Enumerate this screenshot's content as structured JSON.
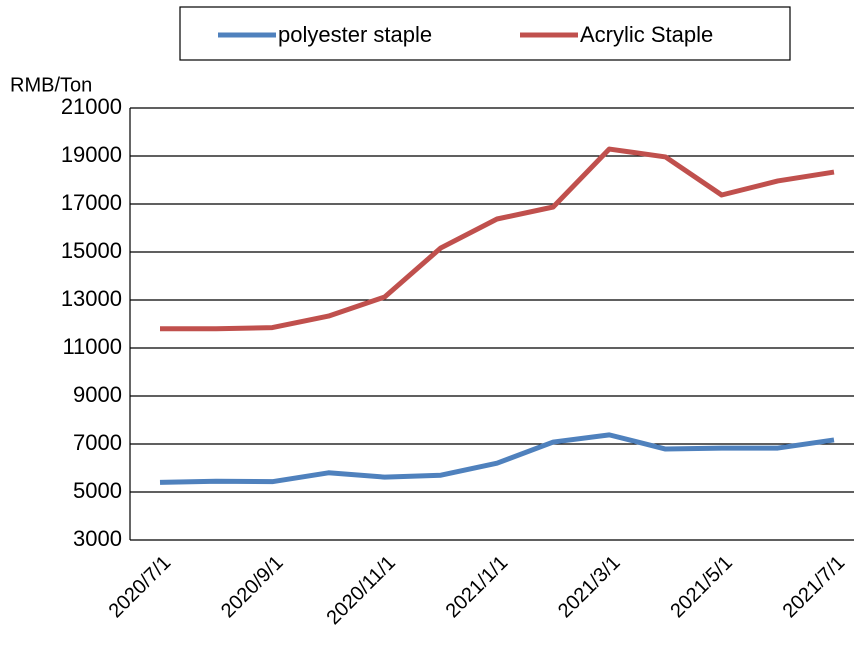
{
  "chart_data": {
    "type": "line",
    "y_label": "RMB/Ton",
    "categories": [
      "2020/7/1",
      null,
      "2020/9/1",
      null,
      "2020/11/1",
      null,
      "2021/1/1",
      null,
      "2021/3/1",
      null,
      "2021/5/1",
      null,
      "2021/7/1"
    ],
    "series": [
      {
        "name": "polyester staple",
        "color": "#4f81bd",
        "values": [
          5400,
          5450,
          5430,
          5800,
          5620,
          5700,
          6200,
          7080,
          7380,
          6790,
          6830,
          6830,
          7170
        ]
      },
      {
        "name": "Acrylic Staple",
        "color": "#c0504d",
        "values": [
          11800,
          11800,
          11850,
          12330,
          13125,
          15170,
          16375,
          16875,
          19290,
          18960,
          17375,
          17960,
          18330
        ]
      }
    ],
    "ylim": [
      3000,
      21000
    ],
    "yticks": [
      3000,
      5000,
      7000,
      9000,
      11000,
      13000,
      15000,
      17000,
      19000,
      21000
    ],
    "grid": true,
    "legend": "top"
  }
}
